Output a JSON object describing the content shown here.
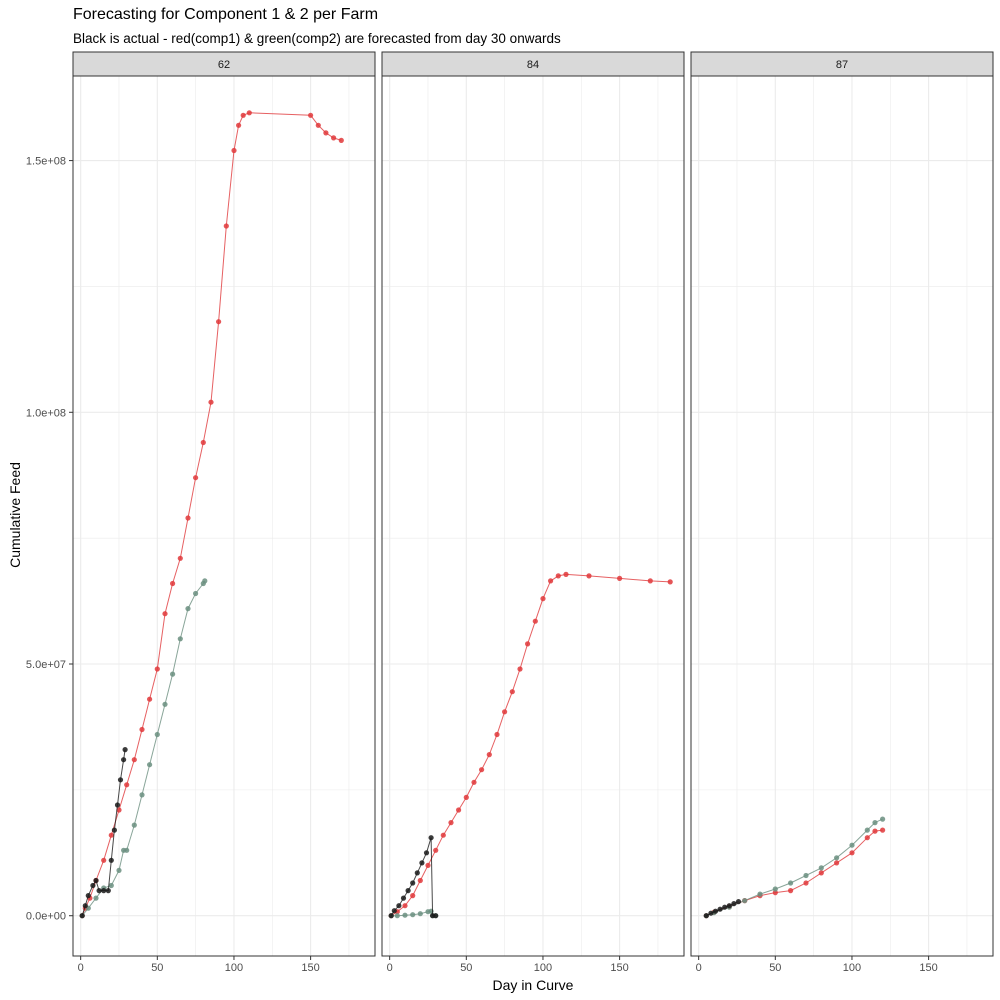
{
  "chart_data": {
    "type": "scatter",
    "title": "Forecasting for Component 1 & 2 per Farm",
    "subtitle": "Black is actual - red(comp1) & green(comp2) are forecasted from day 30 onwards",
    "xlabel": "Day in Curve",
    "ylabel": "Cumulative Feed",
    "xlim": [
      -5,
      192
    ],
    "ylim": [
      -8000000,
      166800000
    ],
    "x_ticks": [
      0,
      50,
      100,
      150
    ],
    "x_tick_labels": [
      "0",
      "50",
      "100",
      "150"
    ],
    "y_ticks": [
      0,
      50000000,
      100000000,
      150000000
    ],
    "y_tick_labels": [
      "0.0e+00",
      "5.0e+07",
      "1.0e+08",
      "1.5e+08"
    ],
    "grid": true,
    "legend": "none",
    "colors": {
      "actual": "#1a1a1a",
      "comp1": "#e0383b",
      "comp2": "#6b8f80",
      "strip_bg": "#d9d9d9",
      "grid": "#ebebeb"
    },
    "panels": [
      {
        "label": "62",
        "series": [
          {
            "key": "comp1",
            "points": [
              [
                1,
                0
              ],
              [
                3,
                1500000
              ],
              [
                6,
                3500000
              ],
              [
                10,
                7000000
              ],
              [
                15,
                11000000
              ],
              [
                20,
                16000000
              ],
              [
                25,
                21000000
              ],
              [
                30,
                26000000
              ],
              [
                35,
                31000000
              ],
              [
                40,
                37000000
              ],
              [
                45,
                43000000
              ],
              [
                50,
                49000000
              ],
              [
                55,
                60000000
              ],
              [
                60,
                66000000
              ],
              [
                65,
                71000000
              ],
              [
                70,
                79000000
              ],
              [
                75,
                87000000
              ],
              [
                80,
                94000000
              ],
              [
                85,
                102000000
              ],
              [
                90,
                118000000
              ],
              [
                95,
                137000000
              ],
              [
                100,
                152000000
              ],
              [
                103,
                157000000
              ],
              [
                106,
                159000000
              ],
              [
                110,
                159500000
              ],
              [
                150,
                159000000
              ],
              [
                155,
                157000000
              ],
              [
                160,
                155500000
              ],
              [
                165,
                154500000
              ],
              [
                170,
                154000000
              ]
            ]
          },
          {
            "key": "comp2",
            "points": [
              [
                1,
                0
              ],
              [
                5,
                1500000
              ],
              [
                10,
                3500000
              ],
              [
                15,
                5500000
              ],
              [
                20,
                6000000
              ],
              [
                25,
                9000000
              ],
              [
                28,
                13000000
              ],
              [
                30,
                13000000
              ],
              [
                35,
                18000000
              ],
              [
                40,
                24000000
              ],
              [
                45,
                30000000
              ],
              [
                50,
                36000000
              ],
              [
                55,
                42000000
              ],
              [
                60,
                48000000
              ],
              [
                65,
                55000000
              ],
              [
                70,
                61000000
              ],
              [
                75,
                64000000
              ],
              [
                80,
                66000000
              ],
              [
                81,
                66500000
              ]
            ]
          },
          {
            "key": "actual",
            "points": [
              [
                1,
                0
              ],
              [
                3,
                2000000
              ],
              [
                5,
                4000000
              ],
              [
                8,
                6000000
              ],
              [
                10,
                7000000
              ],
              [
                12,
                5000000
              ],
              [
                15,
                5000000
              ],
              [
                18,
                5000000
              ],
              [
                20,
                11000000
              ],
              [
                22,
                17000000
              ],
              [
                24,
                22000000
              ],
              [
                26,
                27000000
              ],
              [
                28,
                31000000
              ],
              [
                29,
                33000000
              ]
            ]
          }
        ]
      },
      {
        "label": "84",
        "series": [
          {
            "key": "comp1",
            "points": [
              [
                1,
                0
              ],
              [
                5,
                800000
              ],
              [
                10,
                2000000
              ],
              [
                15,
                4000000
              ],
              [
                20,
                7000000
              ],
              [
                25,
                10000000
              ],
              [
                30,
                13000000
              ],
              [
                35,
                16000000
              ],
              [
                40,
                18500000
              ],
              [
                45,
                21000000
              ],
              [
                50,
                23500000
              ],
              [
                55,
                26500000
              ],
              [
                60,
                29000000
              ],
              [
                65,
                32000000
              ],
              [
                70,
                36000000
              ],
              [
                75,
                40500000
              ],
              [
                80,
                44500000
              ],
              [
                85,
                49000000
              ],
              [
                90,
                54000000
              ],
              [
                95,
                58500000
              ],
              [
                100,
                63000000
              ],
              [
                105,
                66500000
              ],
              [
                110,
                67500000
              ],
              [
                115,
                67800000
              ],
              [
                130,
                67500000
              ],
              [
                150,
                67000000
              ],
              [
                170,
                66500000
              ],
              [
                183,
                66300000
              ]
            ]
          },
          {
            "key": "comp2",
            "points": [
              [
                1,
                0
              ],
              [
                5,
                0
              ],
              [
                10,
                100000
              ],
              [
                15,
                200000
              ],
              [
                20,
                400000
              ],
              [
                25,
                800000
              ],
              [
                27,
                900000
              ],
              [
                28,
                0
              ],
              [
                30,
                0
              ]
            ]
          },
          {
            "key": "actual",
            "points": [
              [
                1,
                0
              ],
              [
                3,
                1000000
              ],
              [
                6,
                2000000
              ],
              [
                9,
                3500000
              ],
              [
                12,
                5000000
              ],
              [
                15,
                6500000
              ],
              [
                18,
                8500000
              ],
              [
                21,
                10500000
              ],
              [
                24,
                12500000
              ],
              [
                27,
                15500000
              ],
              [
                28,
                0
              ],
              [
                30,
                0
              ]
            ]
          }
        ]
      },
      {
        "label": "87",
        "series": [
          {
            "key": "comp1",
            "points": [
              [
                5,
                0
              ],
              [
                10,
                700000
              ],
              [
                20,
                1800000
              ],
              [
                30,
                3000000
              ],
              [
                40,
                4000000
              ],
              [
                50,
                4600000
              ],
              [
                60,
                5000000
              ],
              [
                70,
                6500000
              ],
              [
                80,
                8500000
              ],
              [
                90,
                10500000
              ],
              [
                100,
                12500000
              ],
              [
                110,
                15500000
              ],
              [
                115,
                16800000
              ],
              [
                120,
                17000000
              ]
            ]
          },
          {
            "key": "comp2",
            "points": [
              [
                5,
                0
              ],
              [
                10,
                600000
              ],
              [
                20,
                1700000
              ],
              [
                30,
                3000000
              ],
              [
                40,
                4300000
              ],
              [
                50,
                5300000
              ],
              [
                60,
                6500000
              ],
              [
                70,
                8000000
              ],
              [
                80,
                9500000
              ],
              [
                90,
                11500000
              ],
              [
                100,
                14000000
              ],
              [
                110,
                17000000
              ],
              [
                115,
                18500000
              ],
              [
                120,
                19200000
              ]
            ]
          },
          {
            "key": "actual",
            "points": [
              [
                5,
                0
              ],
              [
                8,
                500000
              ],
              [
                11,
                900000
              ],
              [
                14,
                1300000
              ],
              [
                17,
                1700000
              ],
              [
                20,
                2000000
              ],
              [
                23,
                2400000
              ],
              [
                26,
                2800000
              ]
            ]
          }
        ]
      }
    ]
  }
}
